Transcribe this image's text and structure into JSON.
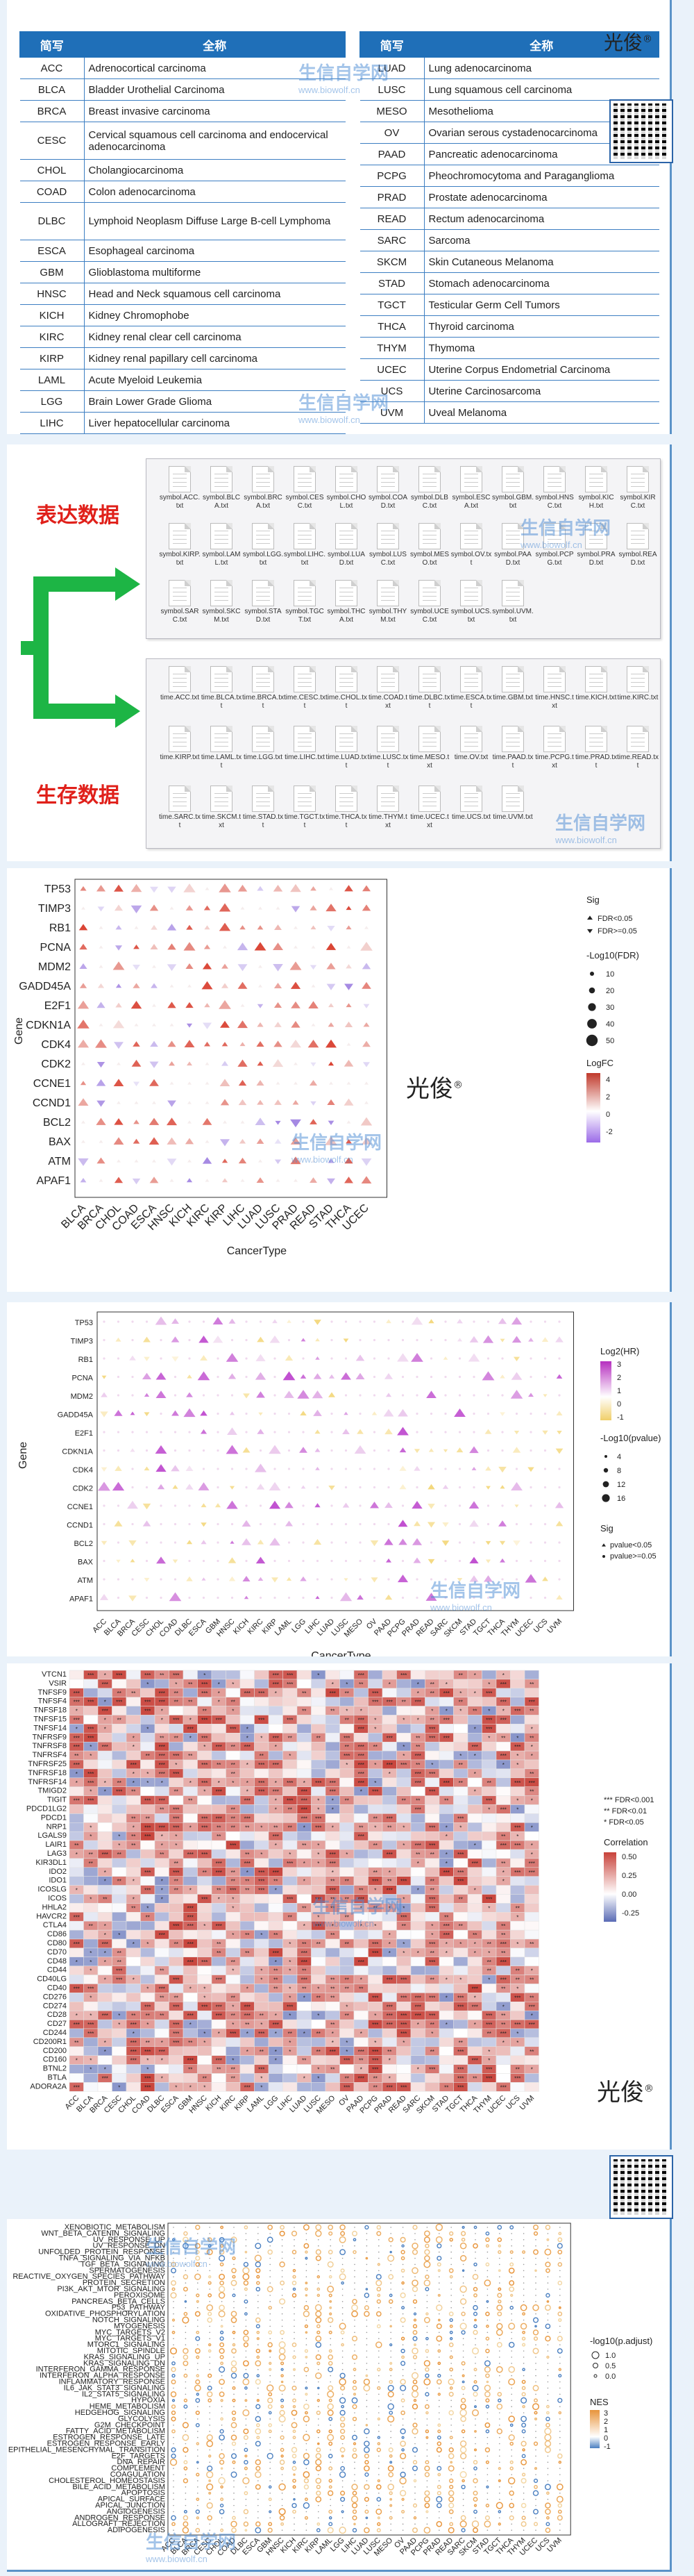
{
  "table": {
    "header_abbr": "简写",
    "header_full": "全称",
    "left_rows": [
      {
        "code": "ACC",
        "name": "Adrenocortical carcinoma"
      },
      {
        "code": "BLCA",
        "name": "Bladder Urothelial Carcinoma"
      },
      {
        "code": "BRCA",
        "name": "Breast invasive carcinoma"
      },
      {
        "code": "CESC",
        "name": "Cervical squamous cell carcinoma and endocervical adenocarcinoma"
      },
      {
        "code": "CHOL",
        "name": "Cholangiocarcinoma"
      },
      {
        "code": "COAD",
        "name": "Colon adenocarcinoma"
      },
      {
        "code": "DLBC",
        "name": "Lymphoid Neoplasm Diffuse Large B-cell Lymphoma"
      },
      {
        "code": "ESCA",
        "name": "Esophageal carcinoma"
      },
      {
        "code": "GBM",
        "name": "Glioblastoma multiforme"
      },
      {
        "code": "HNSC",
        "name": "Head and Neck squamous cell carcinoma"
      },
      {
        "code": "KICH",
        "name": "Kidney Chromophobe"
      },
      {
        "code": "KIRC",
        "name": "Kidney renal clear cell carcinoma"
      },
      {
        "code": "KIRP",
        "name": "Kidney renal papillary cell carcinoma"
      },
      {
        "code": "LAML",
        "name": "Acute Myeloid Leukemia"
      },
      {
        "code": "LGG",
        "name": "Brain Lower Grade Glioma"
      },
      {
        "code": "LIHC",
        "name": "Liver hepatocellular carcinoma"
      }
    ],
    "right_rows": [
      {
        "code": "LUAD",
        "name": "Lung adenocarcinoma"
      },
      {
        "code": "LUSC",
        "name": "Lung squamous cell carcinoma"
      },
      {
        "code": "MESO",
        "name": "Mesothelioma"
      },
      {
        "code": "OV",
        "name": "Ovarian serous cystadenocarcinoma"
      },
      {
        "code": "PAAD",
        "name": "Pancreatic adenocarcinoma"
      },
      {
        "code": "PCPG",
        "name": "Pheochromocytoma and Paraganglioma"
      },
      {
        "code": "PRAD",
        "name": "Prostate adenocarcinoma"
      },
      {
        "code": "READ",
        "name": "Rectum adenocarcinoma"
      },
      {
        "code": "SARC",
        "name": "Sarcoma"
      },
      {
        "code": "SKCM",
        "name": "Skin Cutaneous Melanoma"
      },
      {
        "code": "STAD",
        "name": "Stomach adenocarcinoma"
      },
      {
        "code": "TGCT",
        "name": "Testicular Germ Cell Tumors"
      },
      {
        "code": "THCA",
        "name": "Thyroid carcinoma"
      },
      {
        "code": "THYM",
        "name": "Thymoma"
      },
      {
        "code": "UCEC",
        "name": "Uterine Corpus Endometrial Carcinoma"
      },
      {
        "code": "UCS",
        "name": "Uterine Carcinosarcoma"
      },
      {
        "code": "UVM",
        "name": "Uveal Melanoma"
      }
    ]
  },
  "watermark": {
    "logo": "光俊",
    "logo_mark": "®",
    "site_cn": "生信自学网",
    "site_url": "www.biowolf.cn"
  },
  "files": {
    "expr_label": "表达数据",
    "surv_label": "生存数据",
    "symbol_files": [
      "symbol.ACC.txt",
      "symbol.BLCA.txt",
      "symbol.BRCA.txt",
      "symbol.CESC.txt",
      "symbol.CHOL.txt",
      "symbol.COAD.txt",
      "symbol.DLBC.txt",
      "symbol.ESCA.txt",
      "symbol.GBM.txt",
      "symbol.HNSC.txt",
      "symbol.KICH.txt",
      "symbol.KIRC.txt",
      "symbol.KIRP.txt",
      "symbol.LAML.txt",
      "symbol.LGG.txt",
      "symbol.LIHC.txt",
      "symbol.LUAD.txt",
      "symbol.LUSC.txt",
      "symbol.MESO.txt",
      "symbol.OV.txt",
      "symbol.PAAD.txt",
      "symbol.PCPG.txt",
      "symbol.PRAD.txt",
      "symbol.READ.txt",
      "symbol.SARC.txt",
      "symbol.SKCM.txt",
      "symbol.STAD.txt",
      "symbol.TGCT.txt",
      "symbol.THCA.txt",
      "symbol.THYM.txt",
      "symbol.UCEC.txt",
      "symbol.UCS.txt",
      "symbol.UVM.txt"
    ],
    "time_files": [
      "time.ACC.txt",
      "time.BLCA.txt",
      "time.BRCA.txt",
      "time.CESC.txt",
      "time.CHOL.txt",
      "time.COAD.txt",
      "time.DLBC.txt",
      "time.ESCA.txt",
      "time.GBM.txt",
      "time.HNSC.txt",
      "time.KICH.txt",
      "time.KIRC.txt",
      "time.KIRP.txt",
      "time.LAML.txt",
      "time.LGG.txt",
      "time.LIHC.txt",
      "time.LUAD.txt",
      "time.LUSC.txt",
      "time.MESO.txt",
      "time.OV.txt",
      "time.PAAD.txt",
      "time.PCPG.txt",
      "time.PRAD.txt",
      "time.READ.txt",
      "time.SARC.txt",
      "time.SKCM.txt",
      "time.STAD.txt",
      "time.TGCT.txt",
      "time.THCA.txt",
      "time.THYM.txt",
      "time.UCEC.txt",
      "time.UCS.txt",
      "time.UVM.txt"
    ]
  },
  "chart_data": [
    {
      "type": "scatter",
      "title": "",
      "xlabel": "CancerType",
      "ylabel": "Gene",
      "categories": [
        "BLCA",
        "BRCA",
        "CHOL",
        "COAD",
        "ESCA",
        "HNSC",
        "KICH",
        "KIRC",
        "KIRP",
        "LIHC",
        "LUAD",
        "LUSC",
        "PRAD",
        "READ",
        "STAD",
        "THCA",
        "UCEC"
      ],
      "genes": [
        "TP53",
        "TIMP3",
        "RB1",
        "PCNA",
        "MDM2",
        "GADD45A",
        "E2F1",
        "CDKN1A",
        "CDK4",
        "CDK2",
        "CCNE1",
        "CCND1",
        "BCL2",
        "BAX",
        "ATM",
        "APAF1"
      ],
      "legend": {
        "sig_title": "Sig",
        "sig_items": [
          "FDR<0.05",
          "FDR>=0.05"
        ],
        "size_title": "-Log10(FDR)",
        "size_items": [
          "10",
          "20",
          "30",
          "40",
          "50"
        ],
        "color_title": "LogFC",
        "color_ticks": [
          "4",
          "2",
          "0",
          "-2"
        ]
      }
    },
    {
      "type": "scatter",
      "title": "",
      "xlabel": "CancerType",
      "ylabel": "Gene",
      "categories": [
        "ACC",
        "BLCA",
        "BRCA",
        "CESC",
        "CHOL",
        "COAD",
        "DLBC",
        "ESCA",
        "GBM",
        "HNSC",
        "KICH",
        "KIRC",
        "KIRP",
        "LAML",
        "LGG",
        "LIHC",
        "LUAD",
        "LUSC",
        "MESO",
        "OV",
        "PAAD",
        "PCPG",
        "PRAD",
        "READ",
        "SARC",
        "SKCM",
        "STAD",
        "TGCT",
        "THCA",
        "THYM",
        "UCEC",
        "UCS",
        "UVM"
      ],
      "genes": [
        "TP53",
        "TIMP3",
        "RB1",
        "PCNA",
        "MDM2",
        "GADD45A",
        "E2F1",
        "CDKN1A",
        "CDK4",
        "CDK2",
        "CCNE1",
        "CCND1",
        "BCL2",
        "BAX",
        "ATM",
        "APAF1"
      ],
      "legend": {
        "color_title": "Log2(HR)",
        "color_ticks": [
          "3",
          "2",
          "1",
          "0",
          "-1"
        ],
        "size_title": "-Log10(pvalue)",
        "size_items": [
          "4",
          "8",
          "12",
          "16"
        ],
        "sig_title": "Sig",
        "sig_items": [
          "pvalue<0.05",
          "pvalue>=0.05"
        ]
      }
    },
    {
      "type": "heatmap",
      "title": "",
      "categories": [
        "ACC",
        "BLCA",
        "BRCA",
        "CESC",
        "CHOL",
        "COAD",
        "DLBC",
        "ESCA",
        "GBM",
        "HNSC",
        "KICH",
        "KIRC",
        "KIRP",
        "LAML",
        "LGG",
        "LIHC",
        "LUAD",
        "LUSC",
        "MESO",
        "OV",
        "PAAD",
        "PCPG",
        "PRAD",
        "READ",
        "SARC",
        "SKCM",
        "STAD",
        "TGCT",
        "THCA",
        "THYM",
        "UCEC",
        "UCS",
        "UVM"
      ],
      "genes": [
        "VTCN1",
        "VSIR",
        "TNFSF9",
        "TNFSF4",
        "TNFSF18",
        "TNFSF15",
        "TNFSF14",
        "TNFRSF9",
        "TNFRSF8",
        "TNFRSF4",
        "TNFRSF25",
        "TNFRSF18",
        "TNFRSF14",
        "TMIGD2",
        "TIGIT",
        "PDCD1LG2",
        "PDCD1",
        "NRP1",
        "LGALS9",
        "LAIR1",
        "LAG3",
        "KIR3DL1",
        "IDO2",
        "IDO1",
        "ICOSLG",
        "ICOS",
        "HHLA2",
        "HAVCR2",
        "CTLA4",
        "CD86",
        "CD80",
        "CD70",
        "CD48",
        "CD44",
        "CD40LG",
        "CD40",
        "CD276",
        "CD274",
        "CD28",
        "CD27",
        "CD244",
        "CD200R1",
        "CD200",
        "CD160",
        "BTNL2",
        "BTLA",
        "ADORA2A"
      ],
      "legend": {
        "sig_lines": [
          "*** FDR<0.001",
          "** FDR<0.01",
          "* FDR<0.05"
        ],
        "color_title": "Correlation",
        "color_ticks": [
          "0.50",
          "0.25",
          "0.00",
          "-0.25"
        ]
      }
    },
    {
      "type": "scatter",
      "title": "",
      "categories": [
        "ACC",
        "BLCA",
        "BRCA",
        "CESC",
        "CHOL",
        "COAD",
        "DLBC",
        "ESCA",
        "GBM",
        "HNSC",
        "KICH",
        "KIRC",
        "KIRP",
        "LAML",
        "LGG",
        "LIHC",
        "LUAD",
        "LUSC",
        "MESO",
        "OV",
        "PAAD",
        "PCPG",
        "PRAD",
        "READ",
        "SARC",
        "SKCM",
        "STAD",
        "TGCT",
        "THCA",
        "THYM",
        "UCEC",
        "UCS",
        "UVM"
      ],
      "pathways": [
        "XENOBIOTIC_METABOLISM",
        "WNT_BETA_CATENIN_SIGNALING",
        "UV_RESPONSE_UP",
        "UV_RESPONSE_DN",
        "UNFOLDED_PROTEIN_RESPONSE",
        "TNFA_SIGNALING_VIA_NFKB",
        "TGF_BETA_SIGNALING",
        "SPERMATOGENESIS",
        "REACTIVE_OXYGEN_SPECIES_PATHWAY",
        "PROTEIN_SECRETION",
        "PI3K_AKT_MTOR_SIGNALING",
        "PEROXISOME",
        "PANCREAS_BETA_CELLS",
        "P53_PATHWAY",
        "OXIDATIVE_PHOSPHORYLATION",
        "NOTCH_SIGNALING",
        "MYOGENESIS",
        "MYC_TARGETS_V2",
        "MYC_TARGETS_V1",
        "MTORC1_SIGNALING",
        "MITOTIC_SPINDLE",
        "KRAS_SIGNALING_UP",
        "KRAS_SIGNALING_DN",
        "INTERFERON_GAMMA_RESPONSE",
        "INTERFERON_ALPHA_RESPONSE",
        "INFLAMMATORY_RESPONSE",
        "IL6_JAK_STAT3_SIGNALING",
        "IL2_STAT5_SIGNALING",
        "HYPOXIA",
        "HEME_METABOLISM",
        "HEDGEHOG_SIGNALING",
        "GLYCOLYSIS",
        "G2M_CHECKPOINT",
        "FATTY_ACID_METABOLISM",
        "ESTROGEN_RESPONSE_LATE",
        "ESTROGEN_RESPONSE_EARLY",
        "EPITHELIAL_MESENCHYMAL_TRANSITION",
        "E2F_TARGETS",
        "DNA_REPAIR",
        "COMPLEMENT",
        "COAGULATION",
        "CHOLESTEROL_HOMEOSTASIS",
        "BILE_ACID_METABOLISM",
        "APOPTOSIS",
        "APICAL_SURFACE",
        "APICAL_JUNCTION",
        "ANGIOGENESIS",
        "ANDROGEN_RESPONSE",
        "ALLOGRAFT_REJECTION",
        "ADIPOGENESIS"
      ],
      "legend": {
        "size_title": "-log10(p.adjust)",
        "size_items": [
          "1.0",
          "0.5",
          "0.0"
        ],
        "color_title": "NES",
        "color_ticks": [
          "3",
          "2",
          "1",
          "0",
          "-1"
        ]
      }
    }
  ],
  "colors": {
    "header_blue": "#1f6fb8",
    "arrow_green": "#1db545",
    "label_red": "#e0201a",
    "panel_border": "#5b93c8",
    "up_red": "#d7301f",
    "down_purple": "#9b7be0",
    "hr_magenta": "#c04fd0",
    "hr_yellow": "#f3d77a",
    "corr_red": "#c8423a",
    "corr_blue": "#5a6bb5",
    "nes_orange": "#e8943a",
    "nes_blue": "#4a7fc0"
  }
}
